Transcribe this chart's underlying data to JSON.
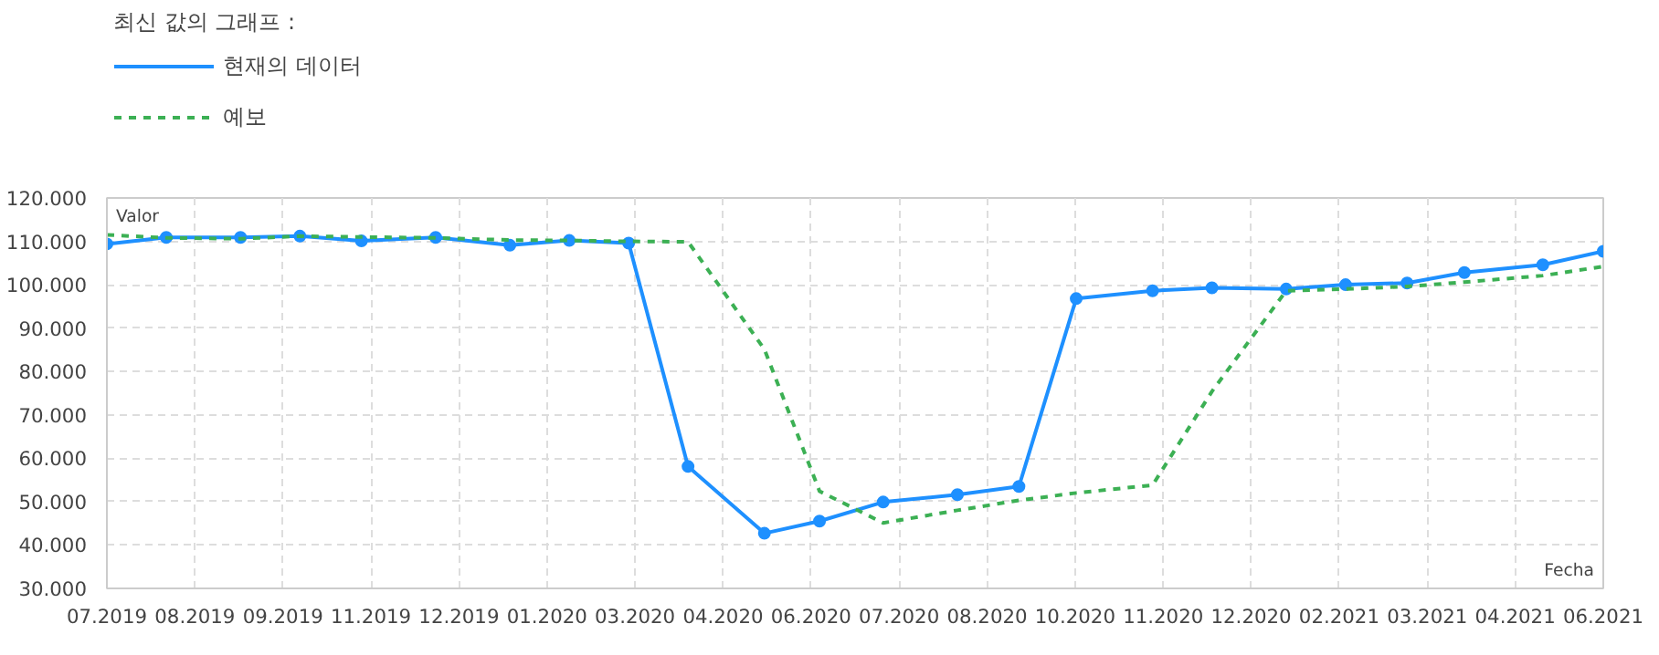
{
  "chart_data": {
    "type": "line",
    "legend_title": "최신 값의 그래프 :",
    "xlabel": "Fecha",
    "ylabel": "Valor",
    "xlim": [
      "2019-07-06",
      "2021-06-10T12:00"
    ],
    "xticks": [
      {
        "value": "2019-07-06",
        "label": "07.2019"
      },
      {
        "value": "2019-08-16T12:00",
        "label": "08.2019"
      },
      {
        "value": "2019-09-27",
        "label": "09.2019"
      },
      {
        "value": "2019-11-07T12:00",
        "label": "11.2019"
      },
      {
        "value": "2019-12-19",
        "label": "12.2019"
      },
      {
        "value": "2020-01-29T12:00",
        "label": "01.2020"
      },
      {
        "value": "2020-03-11",
        "label": "03.2020"
      },
      {
        "value": "2020-04-21T12:00",
        "label": "04.2020"
      },
      {
        "value": "2020-06-02",
        "label": "06.2020"
      },
      {
        "value": "2020-07-13T12:00",
        "label": "07.2020"
      },
      {
        "value": "2020-08-24",
        "label": "08.2020"
      },
      {
        "value": "2020-10-04T12:00",
        "label": "10.2020"
      },
      {
        "value": "2020-11-15",
        "label": "11.2020"
      },
      {
        "value": "2020-12-26T12:00",
        "label": "12.2020"
      },
      {
        "value": "2021-02-06",
        "label": "02.2021"
      },
      {
        "value": "2021-03-19T12:00",
        "label": "03.2021"
      },
      {
        "value": "2021-04-30",
        "label": "04.2021"
      },
      {
        "value": "2021-06-10T12:00",
        "label": "06.2021"
      }
    ],
    "ylim": [
      30,
      120
    ],
    "yticks": [
      {
        "value": 30,
        "label": "30.000"
      },
      {
        "value": 40,
        "label": "40.000"
      },
      {
        "value": 50,
        "label": "50.000"
      },
      {
        "value": 60,
        "label": "60.000"
      },
      {
        "value": 70,
        "label": "70.000"
      },
      {
        "value": 80,
        "label": "80.000"
      },
      {
        "value": 90,
        "label": "90.000"
      },
      {
        "value": 100,
        "label": "100.000"
      },
      {
        "value": 110,
        "label": "110.000"
      },
      {
        "value": 120,
        "label": "120.000"
      }
    ],
    "grid": true,
    "legend": "top left",
    "x": [
      "2019-07-06",
      "2019-08-03",
      "2019-09-07",
      "2019-10-05",
      "2019-11-03",
      "2019-12-08",
      "2020-01-12",
      "2020-02-09",
      "2020-03-08",
      "2020-04-05",
      "2020-05-11",
      "2020-06-06",
      "2020-07-06",
      "2020-08-10",
      "2020-09-08",
      "2020-10-05",
      "2020-11-10",
      "2020-12-08",
      "2021-01-12",
      "2021-02-09",
      "2021-03-10",
      "2021-04-06",
      "2021-05-13",
      "2021-06-10T12:00"
    ],
    "series": [
      {
        "name": "현재의 데이터",
        "color": "#1e90ff",
        "marker": "circle",
        "line_style": "solid",
        "values": [
          109.4,
          110.9,
          110.9,
          111.2,
          110.1,
          110.9,
          109.1,
          110.2,
          109.6,
          58.1,
          42.7,
          45.5,
          49.9,
          51.6,
          53.5,
          96.8,
          98.6,
          99.3,
          99.0,
          100.0,
          100.4,
          102.8,
          104.6,
          107.7
        ]
      },
      {
        "name": "예보",
        "color": "#3cb054",
        "marker": "none",
        "line_style": "dashed",
        "values": [
          111.5,
          110.8,
          110.6,
          111.2,
          111.0,
          110.8,
          110.3,
          110.2,
          110.0,
          109.9,
          85.1,
          52.4,
          45.1,
          48.0,
          50.3,
          52.0,
          53.8,
          75.4,
          98.6,
          99.0,
          99.6,
          100.6,
          102.1,
          104.2
        ]
      }
    ]
  }
}
